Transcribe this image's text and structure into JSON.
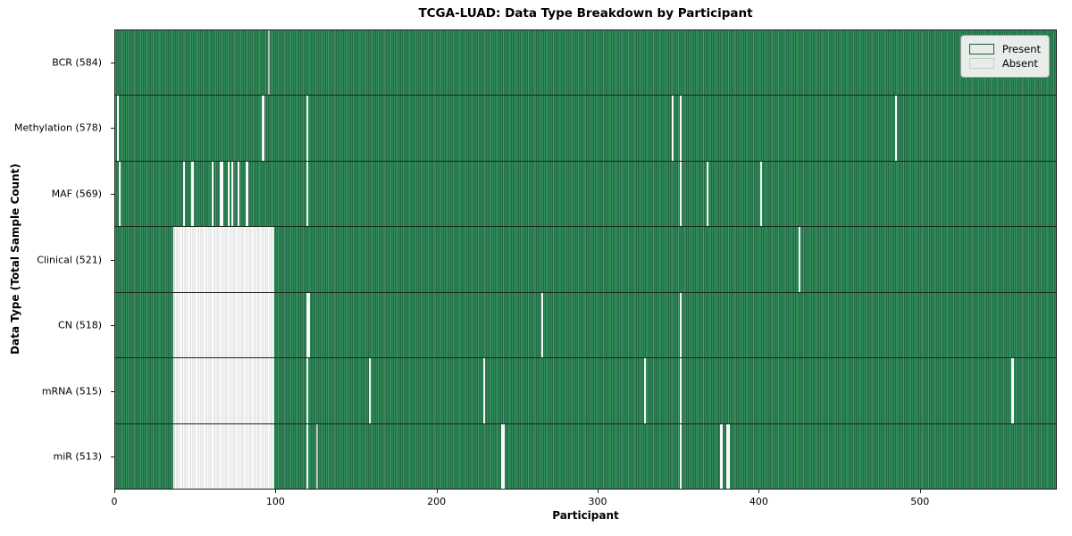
{
  "chart_data": {
    "type": "heatmap",
    "title": "TCGA-LUAD: Data Type Breakdown by Participant",
    "xlabel": "Participant",
    "ylabel": "Data Type (Total Sample Count)",
    "x_ticks": [
      0,
      100,
      200,
      300,
      400,
      500
    ],
    "x_max": 585,
    "total_participants": 585,
    "grid": false,
    "legend_position": "upper right",
    "colors": {
      "present": "#2e8b57",
      "absent": "#ffffff",
      "legend_background": "#e9ede9"
    },
    "legend": [
      {
        "label": "Present",
        "color": "#2e8b57"
      },
      {
        "label": "Absent",
        "color": "#ffffff"
      }
    ],
    "rows": [
      {
        "name": "BCR",
        "label": "BCR (584)",
        "present_count": 584,
        "absent_ranges": [
          [
            95,
            1,
            "grey"
          ]
        ]
      },
      {
        "name": "Methylation",
        "label": "Methylation (578)",
        "present_count": 578,
        "absent_ranges": [
          [
            1,
            1
          ],
          [
            91,
            2
          ],
          [
            119,
            1
          ],
          [
            346,
            1
          ],
          [
            351,
            1
          ],
          [
            485,
            1
          ]
        ]
      },
      {
        "name": "MAF",
        "label": "MAF (569)",
        "present_count": 569,
        "absent_ranges": [
          [
            2,
            1
          ],
          [
            42,
            1
          ],
          [
            47,
            2
          ],
          [
            60,
            1
          ],
          [
            65,
            2
          ],
          [
            70,
            1
          ],
          [
            72,
            1
          ],
          [
            76,
            1
          ],
          [
            81,
            2
          ],
          [
            119,
            1
          ],
          [
            351,
            1
          ],
          [
            368,
            1
          ],
          [
            401,
            1
          ]
        ]
      },
      {
        "name": "Clinical",
        "label": "Clinical (521)",
        "present_count": 521,
        "absent_ranges": [
          [
            36,
            63
          ],
          [
            425,
            1
          ]
        ]
      },
      {
        "name": "CN",
        "label": "CN (518)",
        "present_count": 518,
        "absent_ranges": [
          [
            36,
            63
          ],
          [
            119,
            2
          ],
          [
            265,
            1
          ],
          [
            351,
            1
          ]
        ]
      },
      {
        "name": "mRNA",
        "label": "mRNA (515)",
        "present_count": 515,
        "absent_ranges": [
          [
            36,
            63
          ],
          [
            119,
            1
          ],
          [
            158,
            1
          ],
          [
            229,
            1
          ],
          [
            329,
            1
          ],
          [
            351,
            1
          ],
          [
            557,
            2
          ]
        ]
      },
      {
        "name": "miR",
        "label": "miR (513)",
        "present_count": 513,
        "absent_ranges": [
          [
            36,
            63
          ],
          [
            119,
            1
          ],
          [
            125,
            1,
            "grey"
          ],
          [
            240,
            2
          ],
          [
            351,
            1
          ],
          [
            376,
            2
          ],
          [
            380,
            2
          ]
        ]
      }
    ]
  }
}
